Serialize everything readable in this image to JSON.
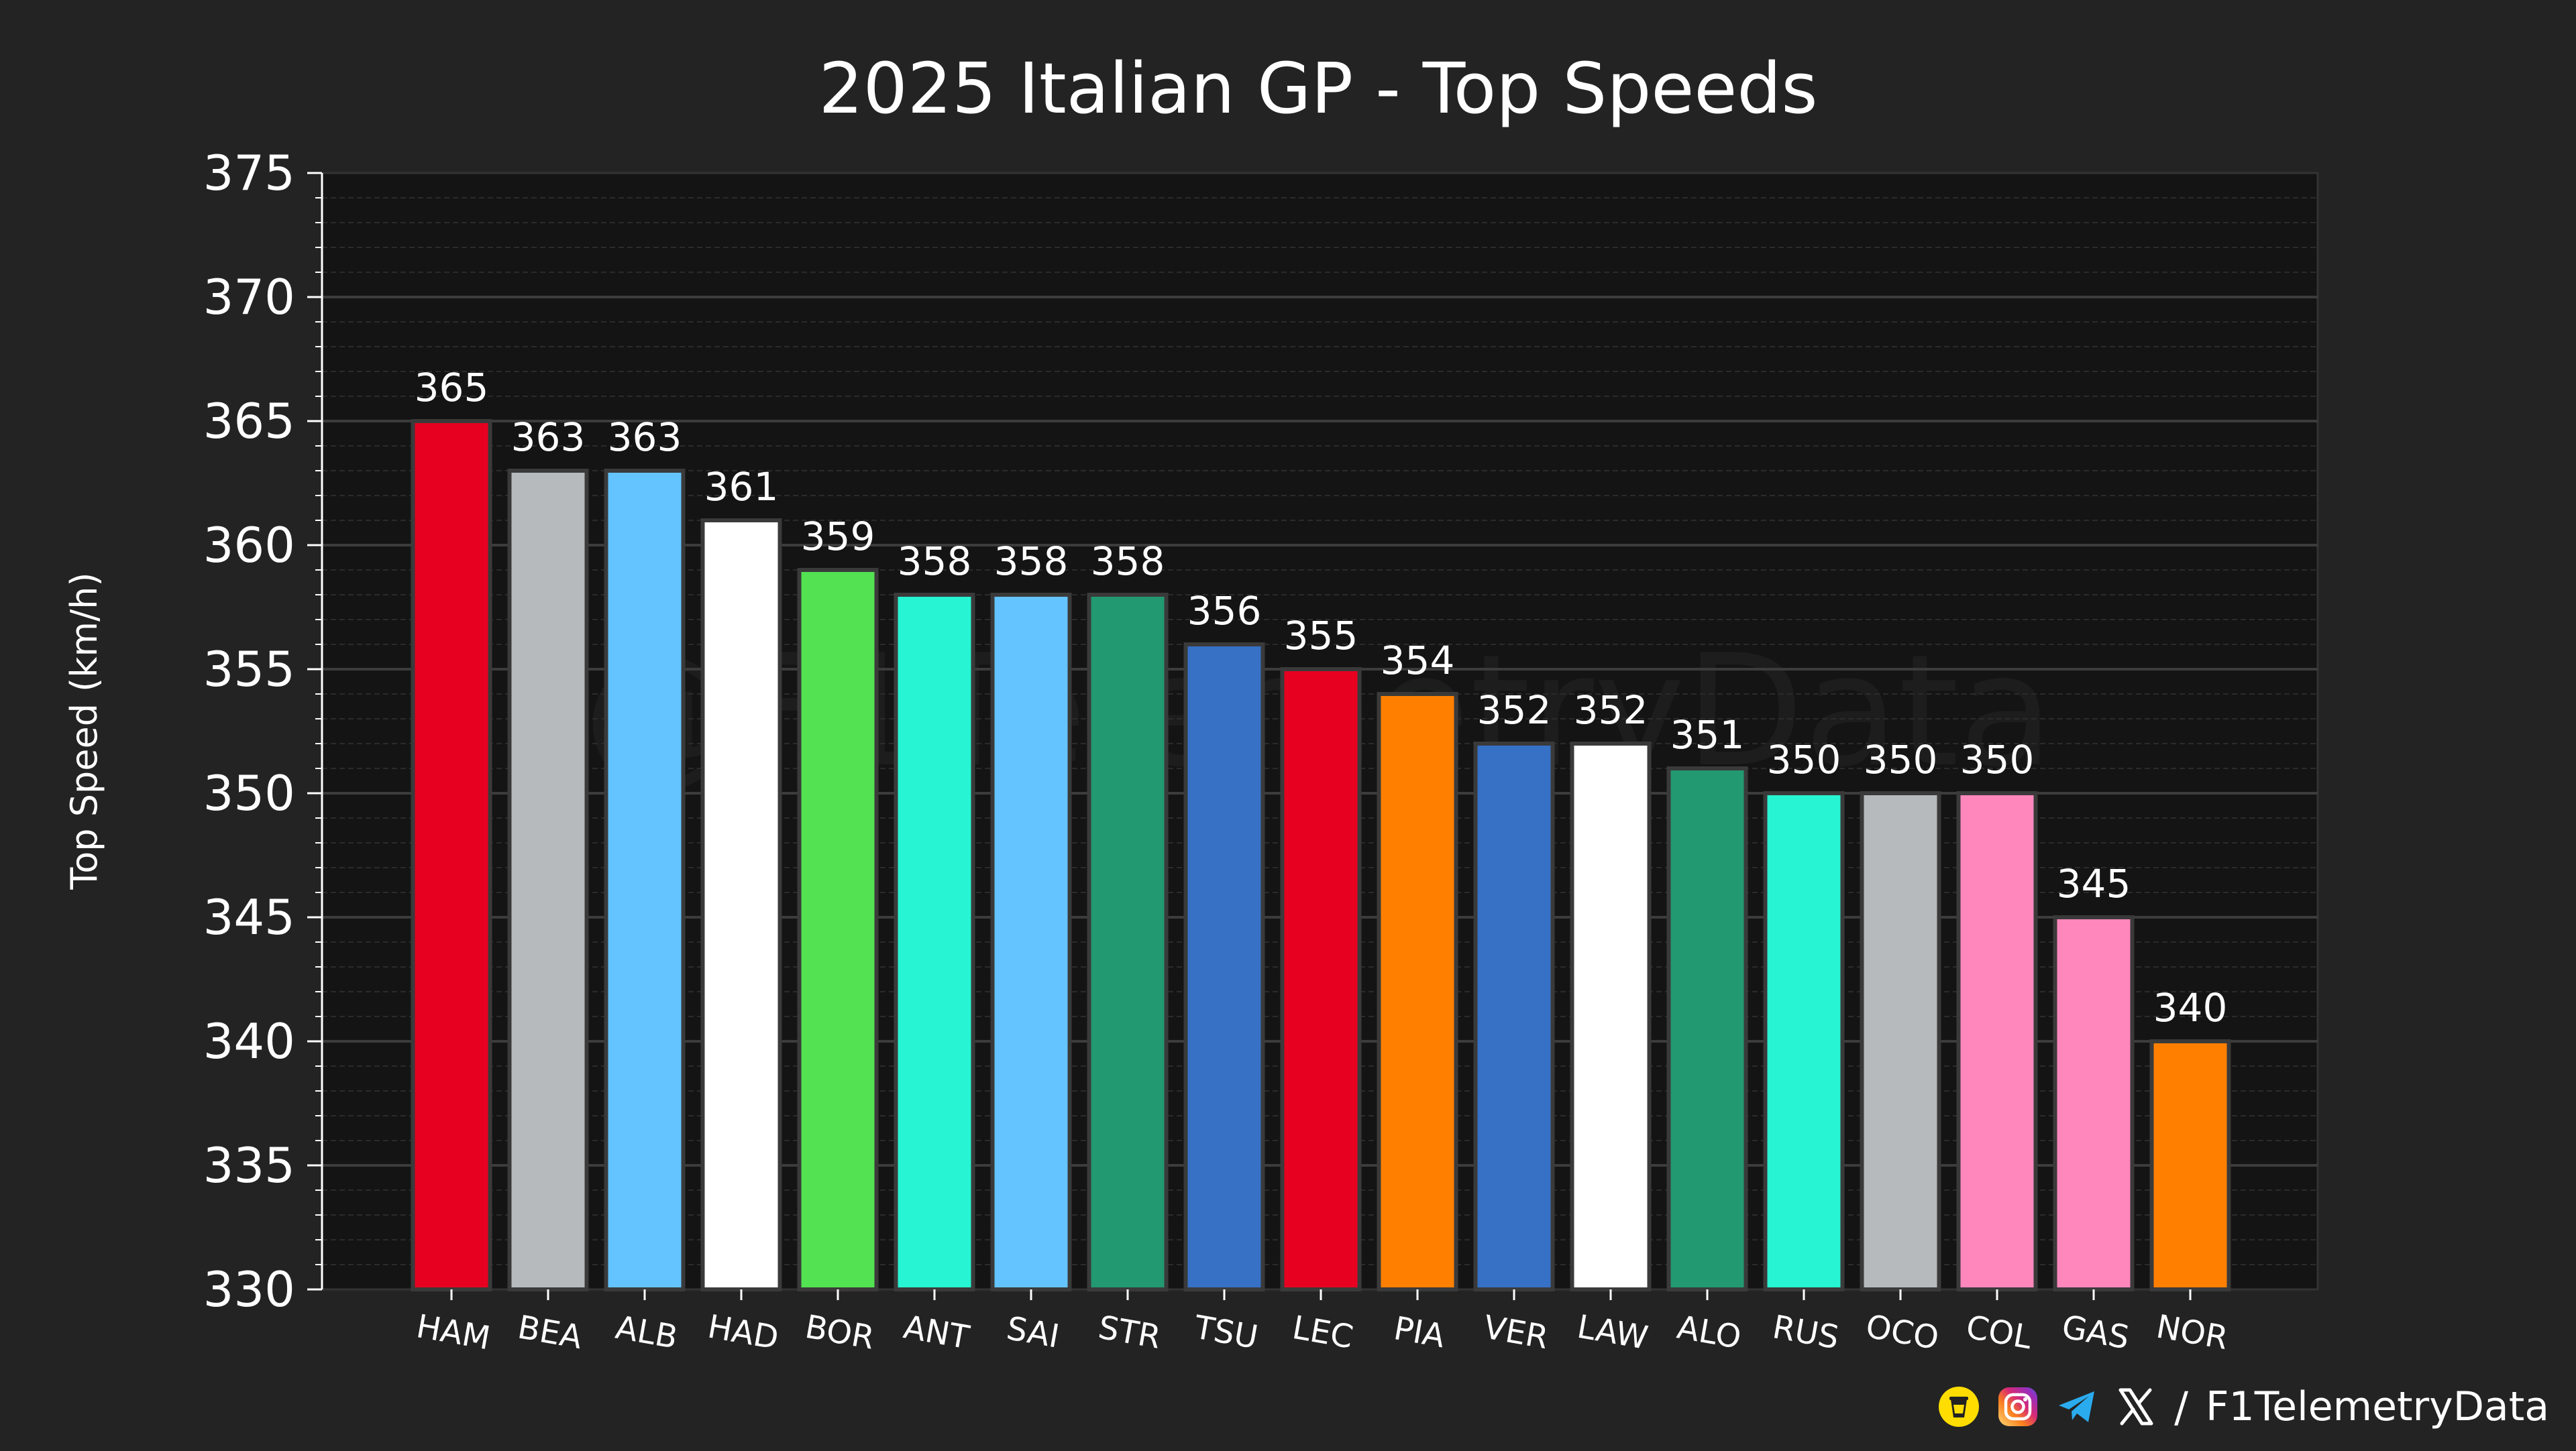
{
  "chart_data": {
    "type": "bar",
    "title": "2025 Italian GP - Top Speeds",
    "xlabel": "",
    "ylabel": "Top Speed (km/h)",
    "ylim": [
      330,
      375
    ],
    "yticks": [
      330,
      335,
      340,
      345,
      350,
      355,
      360,
      365,
      370,
      375
    ],
    "grid": true,
    "categories": [
      "HAM",
      "BEA",
      "ALB",
      "HAD",
      "BOR",
      "ANT",
      "SAI",
      "STR",
      "TSU",
      "LEC",
      "PIA",
      "VER",
      "LAW",
      "ALO",
      "RUS",
      "OCO",
      "COL",
      "GAS",
      "NOR"
    ],
    "values": [
      365,
      363,
      363,
      361,
      359,
      358,
      358,
      358,
      356,
      355,
      354,
      352,
      352,
      351,
      350,
      350,
      350,
      345,
      340
    ],
    "bar_labels": [
      "365",
      "363",
      "363",
      "361",
      "359",
      "358",
      "358",
      "358",
      "356",
      "355",
      "354",
      "352",
      "352",
      "351",
      "350",
      "350",
      "350",
      "345",
      "340"
    ],
    "colors": [
      "#E80020",
      "#B6BABD",
      "#64C4FF",
      "#FFFFFF",
      "#52E252",
      "#27F4D2",
      "#64C4FF",
      "#229971",
      "#3671C6",
      "#E80020",
      "#FF8000",
      "#3671C6",
      "#FFFFFF",
      "#229971",
      "#27F4D2",
      "#B6BABD",
      "#FF87BC",
      "#FF87BC",
      "#FF8000"
    ],
    "watermark": "@F1TelemetryData"
  },
  "footer": {
    "handle": "F1TelemetryData",
    "separator": "/",
    "icons": [
      "bmc-icon",
      "instagram-icon",
      "telegram-icon",
      "x-icon"
    ]
  }
}
